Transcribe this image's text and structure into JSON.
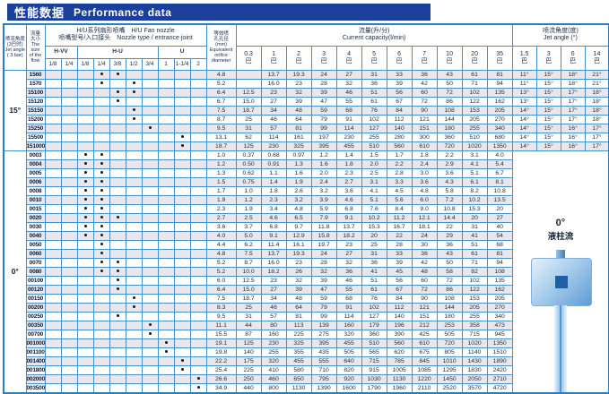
{
  "title": {
    "cn": "性能数据",
    "en": "Performance data"
  },
  "header": {
    "jet_angle_col": {
      "l1": "喷流角度",
      "l2": "(3巴时)",
      "l3": "Jet angle",
      "l4": "( 3 bar)"
    },
    "flow_col": {
      "l1": "流量",
      "l2": "大小",
      "l3": "The size",
      "l4": "of the",
      "l5": "flow"
    },
    "nozzle_group": {
      "l1": "H/U系列扇形喷嘴　H/U  Fan nozzle",
      "l2": "喷嘴型号/入口接头　Nozzle type / entrance joint"
    },
    "families": [
      {
        "name": "H-VV",
        "sizes": [
          "1/8",
          "1/4"
        ]
      },
      {
        "name": "H-U",
        "sizes": [
          "1/8",
          "1/4",
          "3/8",
          "1/2",
          "3/4"
        ]
      },
      {
        "name": "U",
        "sizes": [
          "1",
          "1-1/4",
          "2"
        ]
      }
    ],
    "diameter_col": {
      "l1": "等效喷",
      "l2": "孔孔径",
      "l3": "(mm)",
      "l4": "Equivalent",
      "l5": "orifice",
      "l6": "diameter"
    },
    "capacity_group": {
      "cn": "流量(升/分)",
      "en": "Current capacity(l/min)"
    },
    "pressures": [
      "0.3",
      "1",
      "2",
      "3",
      "4",
      "5",
      "6",
      "7",
      "10",
      "20",
      "35"
    ],
    "bar_unit": "巴",
    "angle_group": {
      "cn": "喷流角度(度)",
      "en": "Jet angle (°)"
    },
    "angle_pressures": [
      "1.5",
      "3",
      "6",
      "14"
    ]
  },
  "graphic": {
    "angle": "0°",
    "label": "液柱流"
  },
  "colors": {
    "accent": "#1a3f9c",
    "grid": "#4a90c8",
    "shade": "#e8e8ec"
  },
  "groups": [
    {
      "label": "15°",
      "merged_graphic": false,
      "rows": [
        {
          "flow": "1560",
          "dots": [
            3,
            4
          ],
          "d": "4.8",
          "cap": [
            "",
            "13.7",
            "19.3",
            "24",
            "27",
            "31",
            "33",
            "36",
            "43",
            "61",
            "81"
          ],
          "ang": [
            "11°",
            "15°",
            "18°",
            "21°"
          ]
        },
        {
          "flow": "1570",
          "dots": [
            3,
            5
          ],
          "d": "5.2",
          "cap": [
            "",
            "16.0",
            "23",
            "28",
            "32",
            "36",
            "39",
            "42",
            "50",
            "71",
            "94"
          ],
          "ang": [
            "11°",
            "15°",
            "18°",
            "21°"
          ]
        },
        {
          "flow": "15100",
          "dots": [
            4,
            5
          ],
          "d": "6.4",
          "cap": [
            "12.5",
            "23",
            "32",
            "39",
            "46",
            "51",
            "56",
            "60",
            "72",
            "102",
            "135"
          ],
          "ang": [
            "13°",
            "15°",
            "17°",
            "18°"
          ]
        },
        {
          "flow": "15120",
          "dots": [
            4
          ],
          "d": "6.7",
          "cap": [
            "15.0",
            "27",
            "39",
            "47",
            "55",
            "61",
            "67",
            "72",
            "86",
            "122",
            "162"
          ],
          "ang": [
            "13°",
            "15°",
            "17°",
            "18°"
          ]
        },
        {
          "flow": "15150",
          "dots": [
            5
          ],
          "d": "7.5",
          "cap": [
            "18.7",
            "34",
            "48",
            "59",
            "68",
            "76",
            "84",
            "90",
            "108",
            "153",
            "205"
          ],
          "ang": [
            "14°",
            "15°",
            "17°",
            "18°"
          ]
        },
        {
          "flow": "15200",
          "dots": [
            5
          ],
          "d": "8.7",
          "cap": [
            "25",
            "46",
            "64",
            "79",
            "91",
            "102",
            "112",
            "121",
            "144",
            "205",
            "270"
          ],
          "ang": [
            "14°",
            "15°",
            "17°",
            "18°"
          ]
        },
        {
          "flow": "15250",
          "dots": [
            6
          ],
          "d": "9.5",
          "cap": [
            "31",
            "57",
            "81",
            "99",
            "114",
            "127",
            "140",
            "151",
            "180",
            "255",
            "340"
          ],
          "ang": [
            "14°",
            "15°",
            "16°",
            "17°"
          ]
        },
        {
          "flow": "15500",
          "dots": [
            8
          ],
          "d": "13.1",
          "cap": [
            "62",
            "114",
            "161",
            "197",
            "230",
            "255",
            "280",
            "300",
            "360",
            "510",
            "680"
          ],
          "ang": [
            "14°",
            "15°",
            "16°",
            "17°"
          ]
        },
        {
          "flow": "151000",
          "dots": [
            8
          ],
          "d": "18.7",
          "cap": [
            "125",
            "230",
            "325",
            "395",
            "455",
            "510",
            "560",
            "610",
            "720",
            "1020",
            "1350"
          ],
          "ang": [
            "14°",
            "15°",
            "16°",
            "17°"
          ]
        }
      ]
    },
    {
      "label": "0°",
      "merged_graphic": true,
      "rows": [
        {
          "flow": "0003",
          "dots": [
            2,
            3
          ],
          "d": "1.0",
          "cap": [
            "0.37",
            "0.68",
            "0.97",
            "1.2",
            "1.4",
            "1.5",
            "1.7",
            "1.8",
            "2.2",
            "3.1",
            "4.0"
          ]
        },
        {
          "flow": "0004",
          "dots": [
            2,
            3
          ],
          "d": "1.2",
          "cap": [
            "0.50",
            "0.91",
            "1.3",
            "1.6",
            "1.8",
            "2.0",
            "2.2",
            "2.4",
            "2.9",
            "4.1",
            "5.4"
          ]
        },
        {
          "flow": "0005",
          "dots": [
            2,
            3
          ],
          "d": "1.3",
          "cap": [
            "0.62",
            "1.1",
            "1.6",
            "2.0",
            "2.3",
            "2.5",
            "2.8",
            "3.0",
            "3.6",
            "5.1",
            "6.7"
          ]
        },
        {
          "flow": "0006",
          "dots": [
            2,
            3
          ],
          "d": "1.5",
          "cap": [
            "0.75",
            "1.4",
            "1.9",
            "2.4",
            "2.7",
            "3.1",
            "3.3",
            "3.6",
            "4.3",
            "6.1",
            "8.1"
          ]
        },
        {
          "flow": "0008",
          "dots": [
            2,
            3
          ],
          "d": "1.7",
          "cap": [
            "1.0",
            "1.8",
            "2.6",
            "3.2",
            "3.6",
            "4.1",
            "4.5",
            "4.8",
            "5.8",
            "8.2",
            "10.8"
          ]
        },
        {
          "flow": "0010",
          "dots": [
            2,
            3
          ],
          "d": "1.9",
          "cap": [
            "1.2",
            "2.3",
            "3.2",
            "3.9",
            "4.6",
            "5.1",
            "5.6",
            "6.0",
            "7.2",
            "10.2",
            "13.5"
          ]
        },
        {
          "flow": "0015",
          "dots": [
            2,
            3
          ],
          "d": "2.3",
          "cap": [
            "1.9",
            "3.4",
            "4.8",
            "5.9",
            "6.8",
            "7.6",
            "8.4",
            "9.0",
            "10.8",
            "15.3",
            "20"
          ]
        },
        {
          "flow": "0020",
          "dots": [
            2,
            3,
            4
          ],
          "d": "2.7",
          "cap": [
            "2.5",
            "4.6",
            "6.5",
            "7.9",
            "9.1",
            "10.2",
            "11.2",
            "12.1",
            "14.4",
            "20",
            "27"
          ]
        },
        {
          "flow": "0030",
          "dots": [
            2,
            3
          ],
          "d": "3.6",
          "cap": [
            "3.7",
            "6.8",
            "9.7",
            "11.8",
            "13.7",
            "15.3",
            "16.7",
            "18.1",
            "22",
            "31",
            "40"
          ]
        },
        {
          "flow": "0040",
          "dots": [
            2,
            3
          ],
          "d": "4.0",
          "cap": [
            "5.0",
            "9.1",
            "12.9",
            "15.8",
            "18.2",
            "20",
            "22",
            "24",
            "29",
            "41",
            "54"
          ]
        },
        {
          "flow": "0050",
          "dots": [
            3
          ],
          "d": "4.4",
          "cap": [
            "6.2",
            "11.4",
            "16.1",
            "19.7",
            "23",
            "25",
            "28",
            "30",
            "36",
            "51",
            "68"
          ]
        },
        {
          "flow": "0060",
          "dots": [
            3
          ],
          "d": "4.8",
          "cap": [
            "7.5",
            "13.7",
            "19.3",
            "24",
            "27",
            "31",
            "33",
            "36",
            "43",
            "61",
            "81"
          ]
        },
        {
          "flow": "0070",
          "dots": [
            3,
            4
          ],
          "d": "5.2",
          "cap": [
            "8.7",
            "16.0",
            "23",
            "28",
            "32",
            "36",
            "39",
            "42",
            "50",
            "71",
            "94"
          ]
        },
        {
          "flow": "0080",
          "dots": [
            3,
            4
          ],
          "d": "5.2",
          "cap": [
            "10.0",
            "18.2",
            "26",
            "32",
            "36",
            "41",
            "45",
            "48",
            "58",
            "82",
            "108"
          ]
        },
        {
          "flow": "00100",
          "dots": [
            4
          ],
          "d": "6.0",
          "cap": [
            "12.5",
            "23",
            "32",
            "39",
            "46",
            "51",
            "56",
            "60",
            "72",
            "102",
            "135"
          ]
        },
        {
          "flow": "00120",
          "dots": [
            4
          ],
          "d": "6.4",
          "cap": [
            "15.0",
            "27",
            "39",
            "47",
            "55",
            "61",
            "67",
            "72",
            "86",
            "122",
            "162"
          ]
        },
        {
          "flow": "00150",
          "dots": [
            5
          ],
          "d": "7.5",
          "cap": [
            "18.7",
            "34",
            "48",
            "59",
            "68",
            "76",
            "84",
            "90",
            "108",
            "153",
            "205"
          ]
        },
        {
          "flow": "00200",
          "dots": [
            5
          ],
          "d": "8.3",
          "cap": [
            "25",
            "46",
            "64",
            "79",
            "91",
            "102",
            "112",
            "121",
            "144",
            "205",
            "270"
          ]
        },
        {
          "flow": "00250",
          "dots": [
            4
          ],
          "d": "9.5",
          "cap": [
            "31",
            "57",
            "81",
            "99",
            "114",
            "127",
            "140",
            "151",
            "180",
            "255",
            "340"
          ]
        },
        {
          "flow": "00350",
          "dots": [
            6
          ],
          "d": "11.1",
          "cap": [
            "44",
            "80",
            "113",
            "139",
            "160",
            "179",
            "196",
            "212",
            "253",
            "358",
            "473"
          ]
        },
        {
          "flow": "00700",
          "dots": [
            6
          ],
          "d": "15.5",
          "cap": [
            "87",
            "160",
            "225",
            "275",
            "320",
            "360",
            "390",
            "425",
            "505",
            "715",
            "945"
          ]
        },
        {
          "flow": "001000",
          "dots": [
            7
          ],
          "d": "19.1",
          "cap": [
            "125",
            "230",
            "325",
            "395",
            "455",
            "510",
            "560",
            "610",
            "720",
            "1020",
            "1350"
          ]
        },
        {
          "flow": "001100",
          "dots": [
            7
          ],
          "d": "19.8",
          "cap": [
            "140",
            "255",
            "355",
            "435",
            "505",
            "565",
            "620",
            "675",
            "805",
            "1140",
            "1510"
          ]
        },
        {
          "flow": "001400",
          "dots": [
            8
          ],
          "d": "22.2",
          "cap": [
            "175",
            "320",
            "455",
            "555",
            "640",
            "715",
            "785",
            "845",
            "1010",
            "1430",
            "1890"
          ]
        },
        {
          "flow": "001800",
          "dots": [
            8
          ],
          "d": "25.4",
          "cap": [
            "225",
            "410",
            "580",
            "710",
            "820",
            "915",
            "1005",
            "1085",
            "1295",
            "1830",
            "2420"
          ]
        },
        {
          "flow": "002000",
          "dots": [
            9
          ],
          "d": "26.6",
          "cap": [
            "250",
            "460",
            "650",
            "795",
            "920",
            "1030",
            "1130",
            "1220",
            "1450",
            "2050",
            "2710"
          ]
        },
        {
          "flow": "003500",
          "dots": [
            9
          ],
          "d": "34.9",
          "cap": [
            "440",
            "800",
            "1130",
            "1390",
            "1600",
            "1790",
            "1960",
            "2110",
            "2520",
            "3570",
            "4720"
          ]
        }
      ]
    }
  ]
}
